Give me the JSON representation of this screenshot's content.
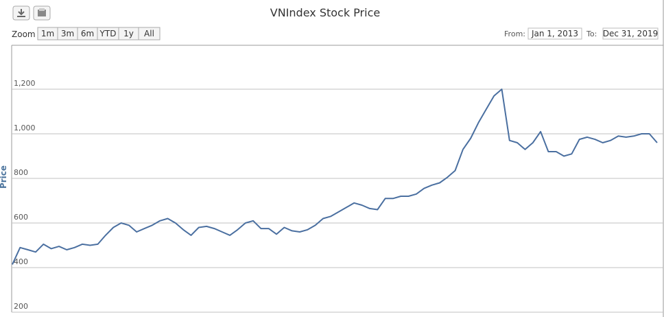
{
  "chart_data": {
    "type": "line",
    "title": "VNIndex Stock Price",
    "y_label": "Price",
    "range_selector": {
      "label": "Zoom",
      "buttons": [
        "1m",
        "3m",
        "6m",
        "YTD",
        "1y",
        "All"
      ]
    },
    "from_label": "From:",
    "from_value": "Jan 1, 2013",
    "to_label": "To:",
    "to_value": "Dec 31, 2019",
    "ylim": [
      200,
      1400
    ],
    "yticks": [
      200,
      400,
      600,
      800,
      {
        "value": 1000,
        "label": "1,000"
      },
      {
        "value": 1200,
        "label": "1,200"
      }
    ],
    "grid": true,
    "color": "#4a6fa0",
    "values": [
      414,
      490,
      480,
      470,
      505,
      485,
      495,
      480,
      490,
      505,
      500,
      505,
      545,
      580,
      600,
      590,
      560,
      575,
      590,
      610,
      620,
      600,
      570,
      545,
      580,
      585,
      575,
      560,
      545,
      570,
      600,
      610,
      575,
      575,
      550,
      580,
      565,
      560,
      570,
      590,
      620,
      630,
      650,
      670,
      690,
      680,
      665,
      660,
      710,
      710,
      720,
      720,
      730,
      755,
      770,
      780,
      805,
      835,
      930,
      980,
      1050,
      1110,
      1170,
      1200,
      970,
      960,
      930,
      960,
      1010,
      920,
      920,
      900,
      910,
      975,
      985,
      975,
      960,
      970,
      990,
      985,
      990,
      1000,
      1000,
      960
    ]
  }
}
